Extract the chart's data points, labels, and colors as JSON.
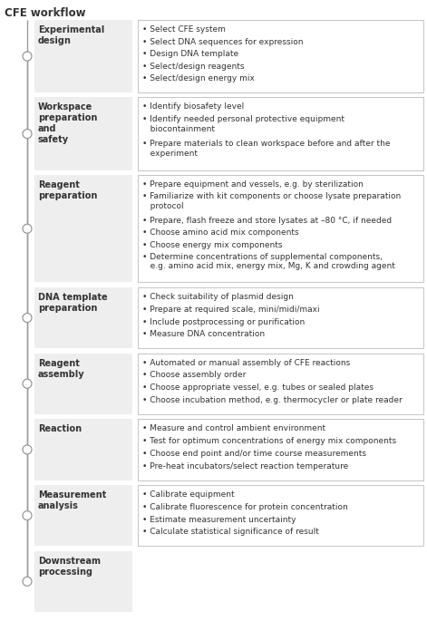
{
  "title": "CFE workflow",
  "fig_w": 4.71,
  "fig_h": 6.85,
  "dpi": 100,
  "bg_color": "#ffffff",
  "left_box_bg": "#eeeeee",
  "right_box_bg": "#ffffff",
  "right_box_border": "#bbbbbb",
  "timeline_color": "#999999",
  "circle_facecolor": "#ffffff",
  "circle_edgecolor": "#999999",
  "text_color": "#333333",
  "title_fontsize": 8.5,
  "label_fontsize": 7.0,
  "bullet_fontsize": 6.5,
  "steps": [
    {
      "label": "Experimental\ndesign",
      "bullets": [
        "Select CFE system",
        "Select DNA sequences for expression",
        "Design DNA template",
        "Select/design reagents",
        "Select/design energy mix"
      ],
      "extra_lines": 0
    },
    {
      "label": "Workspace\npreparation\nand\nsafety",
      "bullets": [
        "Identify biosafety level",
        "Identify needed personal protective equipment\n   biocontainment",
        "Prepare materials to clean workspace before and after the\n   experiment"
      ],
      "extra_lines": 0
    },
    {
      "label": "Reagent\npreparation",
      "bullets": [
        "Prepare equipment and vessels, e.g. by sterilization",
        "Familiarize with kit components or choose lysate preparation\n   protocol",
        "Prepare, flash freeze and store lysates at –80 °C, if needed",
        "Choose amino acid mix components",
        "Choose energy mix components",
        "Determine concentrations of supplemental components,\n   e.g. amino acid mix, energy mix, Mg, K and crowding agent"
      ],
      "extra_lines": 0
    },
    {
      "label": "DNA template\npreparation",
      "bullets": [
        "Check suitability of plasmid design",
        "Prepare at required scale, mini/midi/maxi",
        "Include postprocessing or purification",
        "Measure DNA concentration"
      ],
      "extra_lines": 0
    },
    {
      "label": "Reagent\nassembly",
      "bullets": [
        "Automated or manual assembly of CFE reactions",
        "Choose assembly order",
        "Choose appropriate vessel, e.g. tubes or sealed plates",
        "Choose incubation method, e.g. thermocycler or plate reader"
      ],
      "extra_lines": 0
    },
    {
      "label": "Reaction",
      "bullets": [
        "Measure and control ambient environment",
        "Test for optimum concentrations of energy mix components",
        "Choose end point and/or time course measurements",
        "Pre-heat incubators/select reaction temperature"
      ],
      "extra_lines": 0
    },
    {
      "label": "Measurement\nanalysis",
      "bullets": [
        "Calibrate equipment",
        "Calibrate fluorescence for protein concentration",
        "Estimate measurement uncertainty",
        "Calculate statistical significance of result"
      ],
      "extra_lines": 0
    },
    {
      "label": "Downstream\nprocessing",
      "bullets": [],
      "extra_lines": 0
    }
  ]
}
